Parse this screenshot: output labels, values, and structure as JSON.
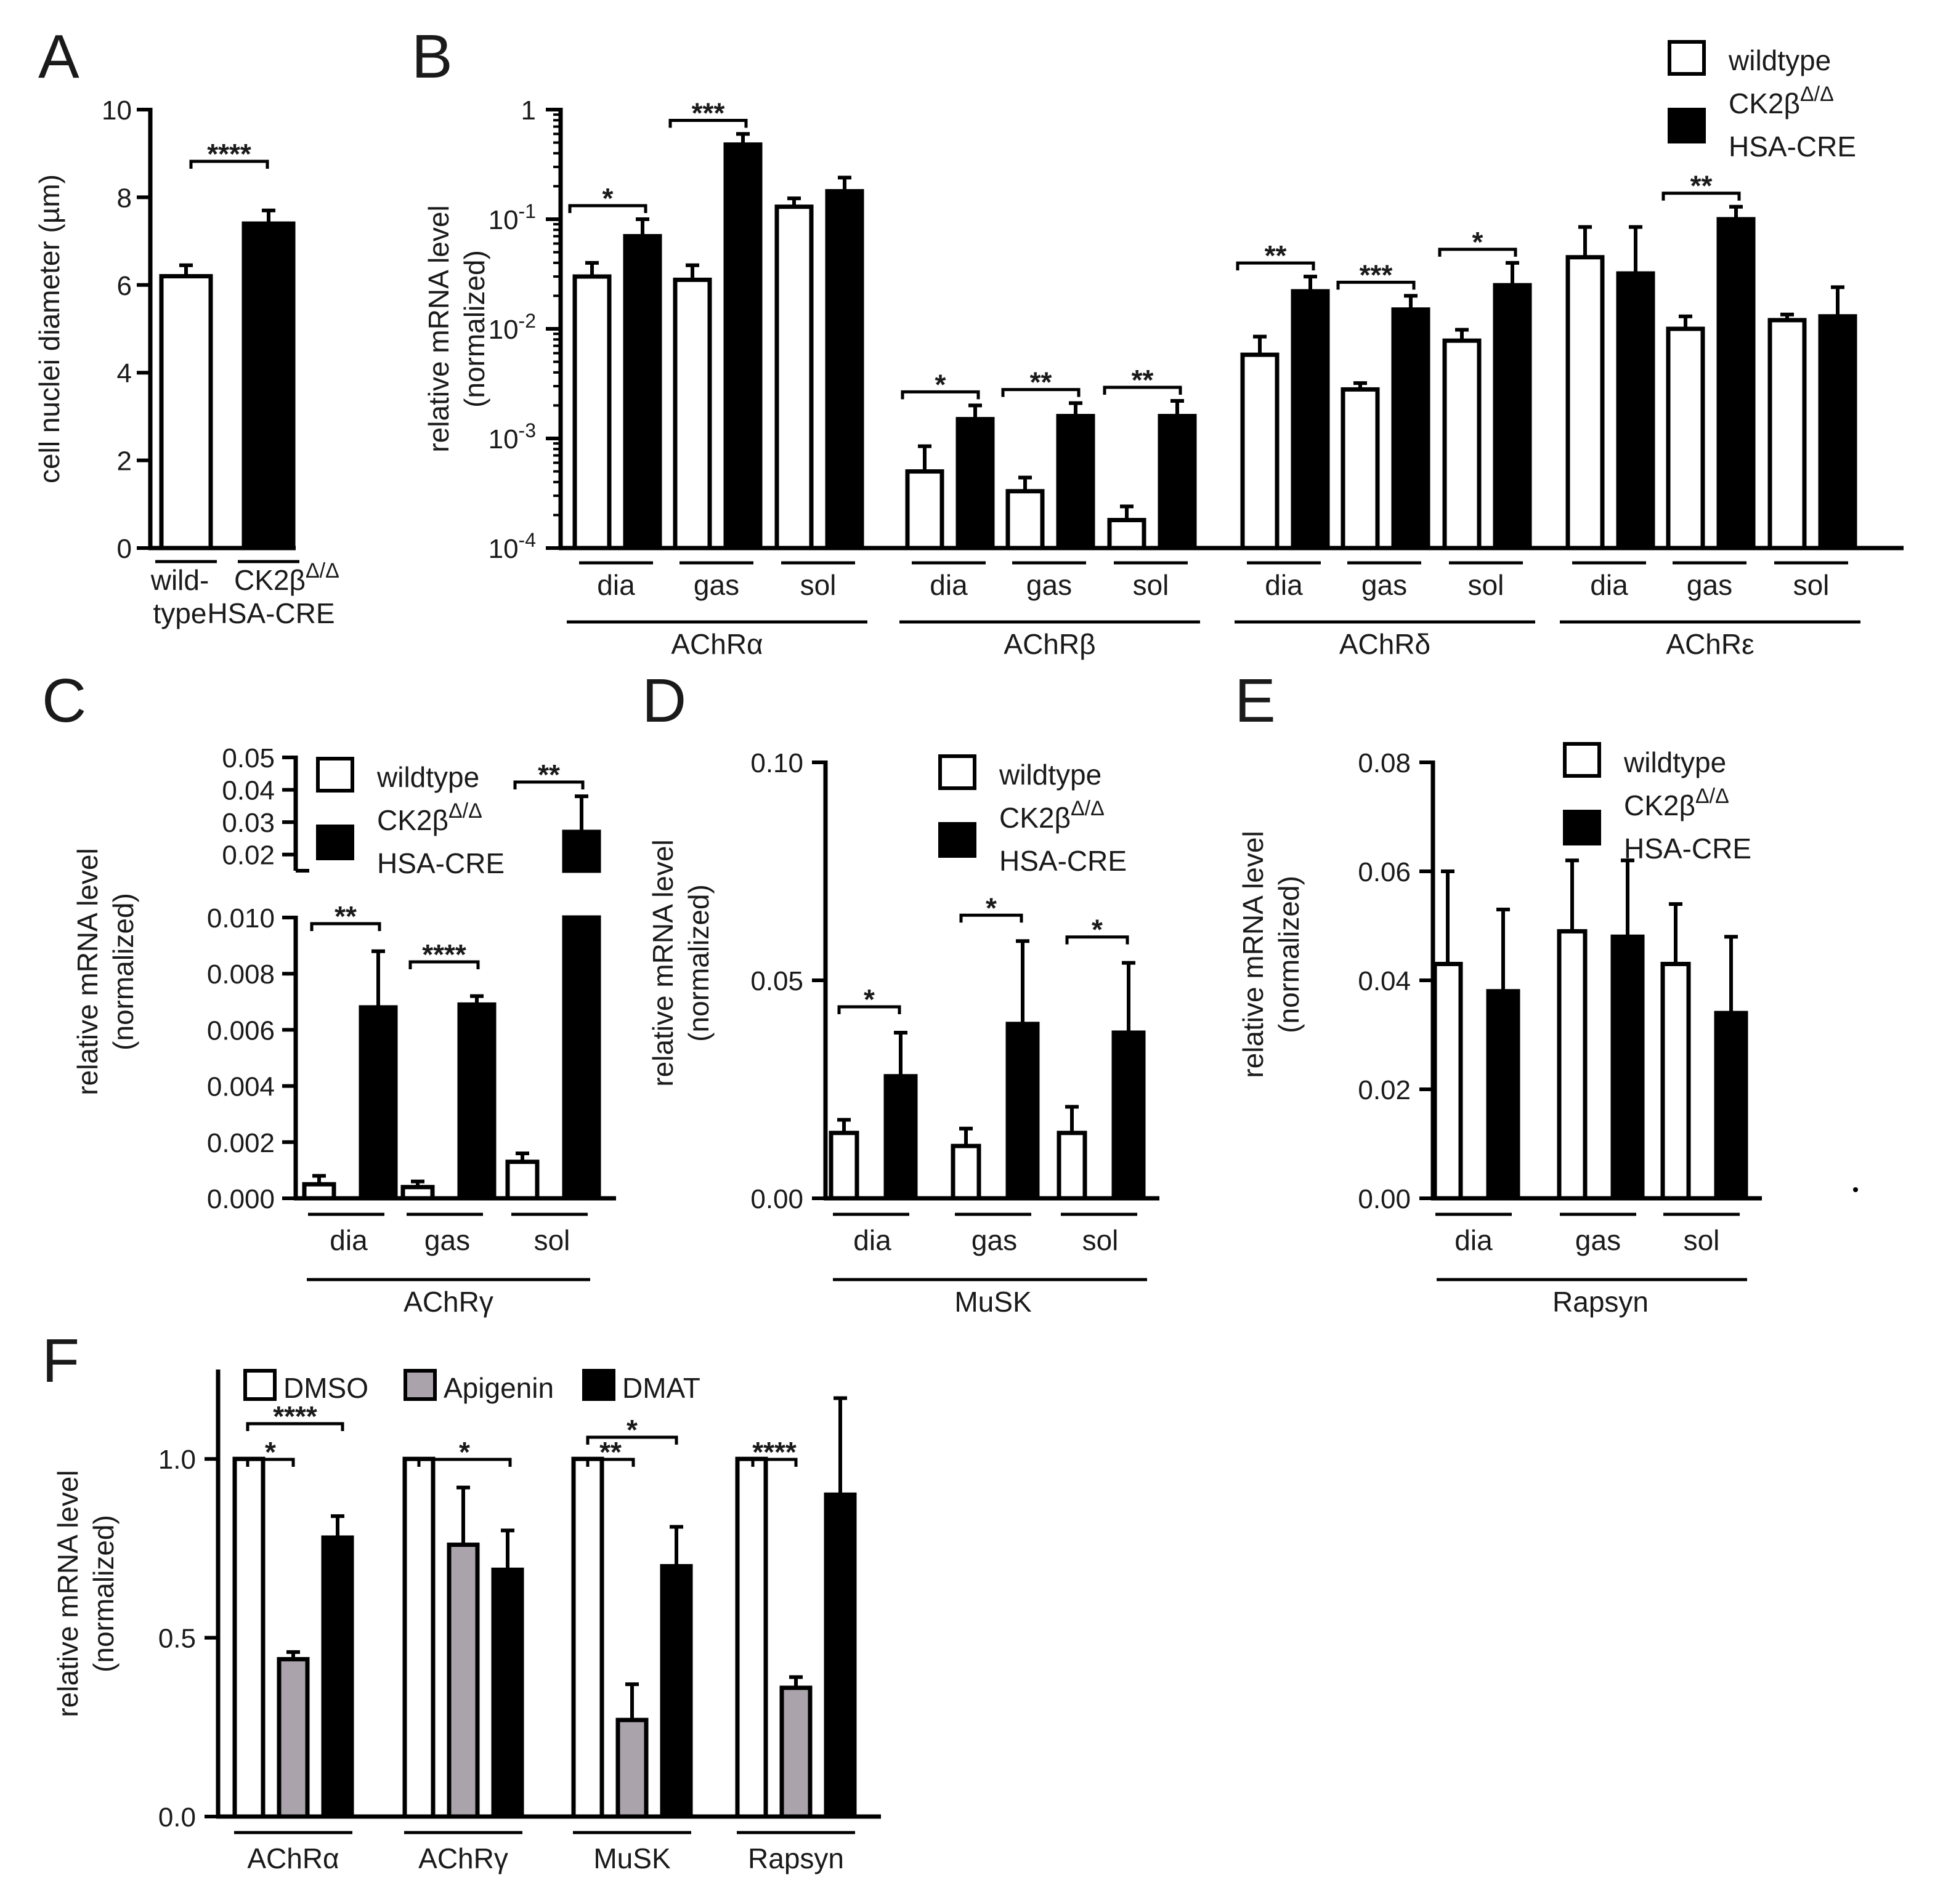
{
  "colors": {
    "wildtype": "#ffffff",
    "mutant": "#000000",
    "dmso": "#ffffff",
    "apigenin": "#aaa3ab",
    "dmat": "#000000"
  },
  "labels": {
    "wt": "wildtype",
    "mutant_l1": "CK2β",
    "mutant_sup": "Δ/Δ",
    "mutant_l2": "HSA-CRE",
    "ylab_l1": "relative mRNA level",
    "ylab_l2": "(normalized)",
    "muscle_dia": "dia",
    "muscle_gas": "gas",
    "muscle_sol": "sol"
  },
  "chart_data": [
    {
      "id": "A",
      "type": "bar",
      "panel_label": "A",
      "ylabel": "cell nuclei diameter (µm)",
      "ylim": [
        0,
        10
      ],
      "yticks": [
        "0",
        "2",
        "4",
        "6",
        "8",
        "10"
      ],
      "categories_l1": [
        "wild-",
        "CK2β"
      ],
      "categories_l2": [
        "type",
        "HSA-CRE"
      ],
      "values": [
        6.2,
        7.4
      ],
      "errors": [
        0.25,
        0.3
      ],
      "significance": [
        {
          "label": "****",
          "pair": [
            0,
            1
          ]
        }
      ]
    },
    {
      "id": "B",
      "type": "bar",
      "panel_label": "B",
      "yscale": "log",
      "ylim": [
        0.0001,
        1
      ],
      "yticks": [
        {
          "base": "1",
          "exp": ""
        },
        {
          "base": "10",
          "exp": "-1"
        },
        {
          "base": "10",
          "exp": "-2"
        },
        {
          "base": "10",
          "exp": "-3"
        },
        {
          "base": "10",
          "exp": "-4"
        }
      ],
      "groups": [
        "AChRα",
        "AChRβ",
        "AChRδ",
        "AChRε"
      ],
      "muscles": [
        "dia",
        "gas",
        "sol"
      ],
      "series": [
        {
          "name": "wildtype",
          "values": [
            0.03,
            0.028,
            0.13,
            0.0005,
            0.00033,
            0.00018,
            0.0058,
            0.0028,
            0.0078,
            0.045,
            0.01,
            0.012
          ],
          "errors": [
            0.04,
            0.038,
            0.155,
            0.00085,
            0.00044,
            0.00024,
            0.0085,
            0.0032,
            0.0098,
            0.085,
            0.013,
            0.0135
          ]
        },
        {
          "name": "CK2β Δ/Δ HSA-CRE",
          "values": [
            0.07,
            0.48,
            0.18,
            0.0015,
            0.0016,
            0.0016,
            0.022,
            0.015,
            0.025,
            0.032,
            0.1,
            0.013
          ],
          "errors": [
            0.1,
            0.6,
            0.24,
            0.002,
            0.0021,
            0.0022,
            0.03,
            0.02,
            0.04,
            0.085,
            0.13,
            0.024
          ]
        }
      ],
      "significance": [
        {
          "group": "AChRα",
          "muscle": "dia",
          "label": "*"
        },
        {
          "group": "AChRα",
          "muscle": "gas",
          "label": "***"
        },
        {
          "group": "AChRβ",
          "muscle": "dia",
          "label": "*"
        },
        {
          "group": "AChRβ",
          "muscle": "gas",
          "label": "**"
        },
        {
          "group": "AChRβ",
          "muscle": "sol",
          "label": "**"
        },
        {
          "group": "AChRδ",
          "muscle": "dia",
          "label": "**"
        },
        {
          "group": "AChRδ",
          "muscle": "gas",
          "label": "***"
        },
        {
          "group": "AChRδ",
          "muscle": "sol",
          "label": "*"
        },
        {
          "group": "AChRε",
          "muscle": "gas",
          "label": "**"
        }
      ]
    },
    {
      "id": "C",
      "type": "bar",
      "panel_label": "C",
      "axis_break": true,
      "group": "AChRγ",
      "ylim_low": [
        0,
        0.01
      ],
      "ylim_high": [
        0.015,
        0.05
      ],
      "yticks_low": [
        "0.000",
        "0.002",
        "0.004",
        "0.006",
        "0.008",
        "0.010"
      ],
      "yticks_high": [
        "0.02",
        "0.03",
        "0.04",
        "0.05"
      ],
      "categories": [
        "dia",
        "gas",
        "sol"
      ],
      "series": [
        {
          "name": "wildtype",
          "values": [
            0.0005,
            0.0004,
            0.0013
          ],
          "errors": [
            0.0008,
            0.0006,
            0.0016
          ]
        },
        {
          "name": "CK2β Δ/Δ HSA-CRE",
          "values": [
            0.0068,
            0.0069,
            0.027
          ],
          "errors": [
            0.0088,
            0.0072,
            0.038
          ]
        }
      ],
      "significance": [
        "**",
        "****",
        "**"
      ]
    },
    {
      "id": "D",
      "type": "bar",
      "panel_label": "D",
      "group": "MuSK",
      "ylim": [
        0,
        0.1
      ],
      "yticks": [
        "0.00",
        "0.05",
        "0.10"
      ],
      "categories": [
        "dia",
        "gas",
        "sol"
      ],
      "series": [
        {
          "name": "wildtype",
          "values": [
            0.015,
            0.012,
            0.015
          ],
          "errors": [
            0.018,
            0.016,
            0.021
          ]
        },
        {
          "name": "CK2β Δ/Δ HSA-CRE",
          "values": [
            0.028,
            0.04,
            0.038
          ],
          "errors": [
            0.038,
            0.059,
            0.054
          ]
        }
      ],
      "significance": [
        "*",
        "*",
        "*"
      ]
    },
    {
      "id": "E",
      "type": "bar",
      "panel_label": "E",
      "group": "Rapsyn",
      "ylim": [
        0,
        0.08
      ],
      "yticks": [
        "0.00",
        "0.02",
        "0.04",
        "0.06",
        "0.08"
      ],
      "categories": [
        "dia",
        "gas",
        "sol"
      ],
      "series": [
        {
          "name": "wildtype",
          "values": [
            0.043,
            0.049,
            0.043
          ],
          "errors": [
            0.06,
            0.062,
            0.054
          ]
        },
        {
          "name": "CK2β Δ/Δ HSA-CRE",
          "values": [
            0.038,
            0.048,
            0.034
          ],
          "errors": [
            0.053,
            0.062,
            0.048
          ]
        }
      ],
      "significance": []
    },
    {
      "id": "F",
      "type": "bar",
      "panel_label": "F",
      "ylim": [
        0,
        1.25
      ],
      "yticks": [
        "0.0",
        "0.5",
        "1.0"
      ],
      "categories": [
        "AChRα",
        "AChRγ",
        "MuSK",
        "Rapsyn"
      ],
      "series": [
        {
          "name": "DMSO",
          "values": [
            1.0,
            1.0,
            1.0,
            1.0
          ],
          "errors": [
            1.0,
            1.0,
            1.0,
            1.0
          ]
        },
        {
          "name": "Apigenin",
          "values": [
            0.44,
            0.76,
            0.27,
            0.36
          ],
          "errors": [
            0.46,
            0.92,
            0.37,
            0.39
          ]
        },
        {
          "name": "DMAT",
          "values": [
            0.78,
            0.69,
            0.7,
            0.9
          ],
          "errors": [
            0.84,
            0.8,
            0.81,
            1.17
          ]
        }
      ],
      "significance": [
        {
          "cat": "AChRα",
          "pair": "DMSO-Apigenin",
          "label": "*"
        },
        {
          "cat": "AChRα",
          "pair": "DMSO-DMAT",
          "label": "****"
        },
        {
          "cat": "AChRγ",
          "pair": "DMSO-DMAT",
          "label": "*"
        },
        {
          "cat": "MuSK",
          "pair": "DMSO-Apigenin",
          "label": "**"
        },
        {
          "cat": "MuSK",
          "pair": "DMSO-DMAT",
          "label": "*"
        },
        {
          "cat": "Rapsyn",
          "pair": "DMSO-Apigenin",
          "label": "****"
        }
      ]
    }
  ]
}
